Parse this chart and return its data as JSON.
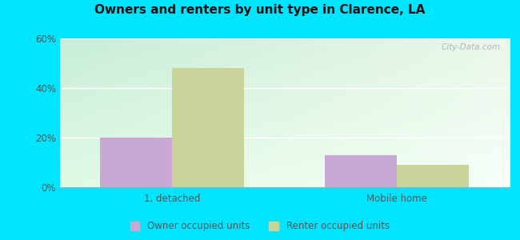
{
  "title": "Owners and renters by unit type in Clarence, LA",
  "categories": [
    "1, detached",
    "Mobile home"
  ],
  "owner_values": [
    20,
    13
  ],
  "renter_values": [
    48,
    9
  ],
  "owner_color": "#c9a8d4",
  "renter_color": "#c8d49a",
  "ylim": [
    0,
    60
  ],
  "yticks": [
    0,
    20,
    40,
    60
  ],
  "ytick_labels": [
    "0%",
    "20%",
    "40%",
    "60%"
  ],
  "outer_bg": "#00e5ff",
  "bar_width": 0.32,
  "legend_labels": [
    "Owner occupied units",
    "Renter occupied units"
  ],
  "watermark": "City-Data.com",
  "bg_topleft": [
    0.78,
    0.93,
    0.85
  ],
  "bg_topright": [
    0.92,
    0.97,
    0.92
  ],
  "bg_botleft": [
    0.88,
    0.98,
    0.9
  ],
  "bg_botright": [
    0.97,
    1.0,
    0.97
  ]
}
